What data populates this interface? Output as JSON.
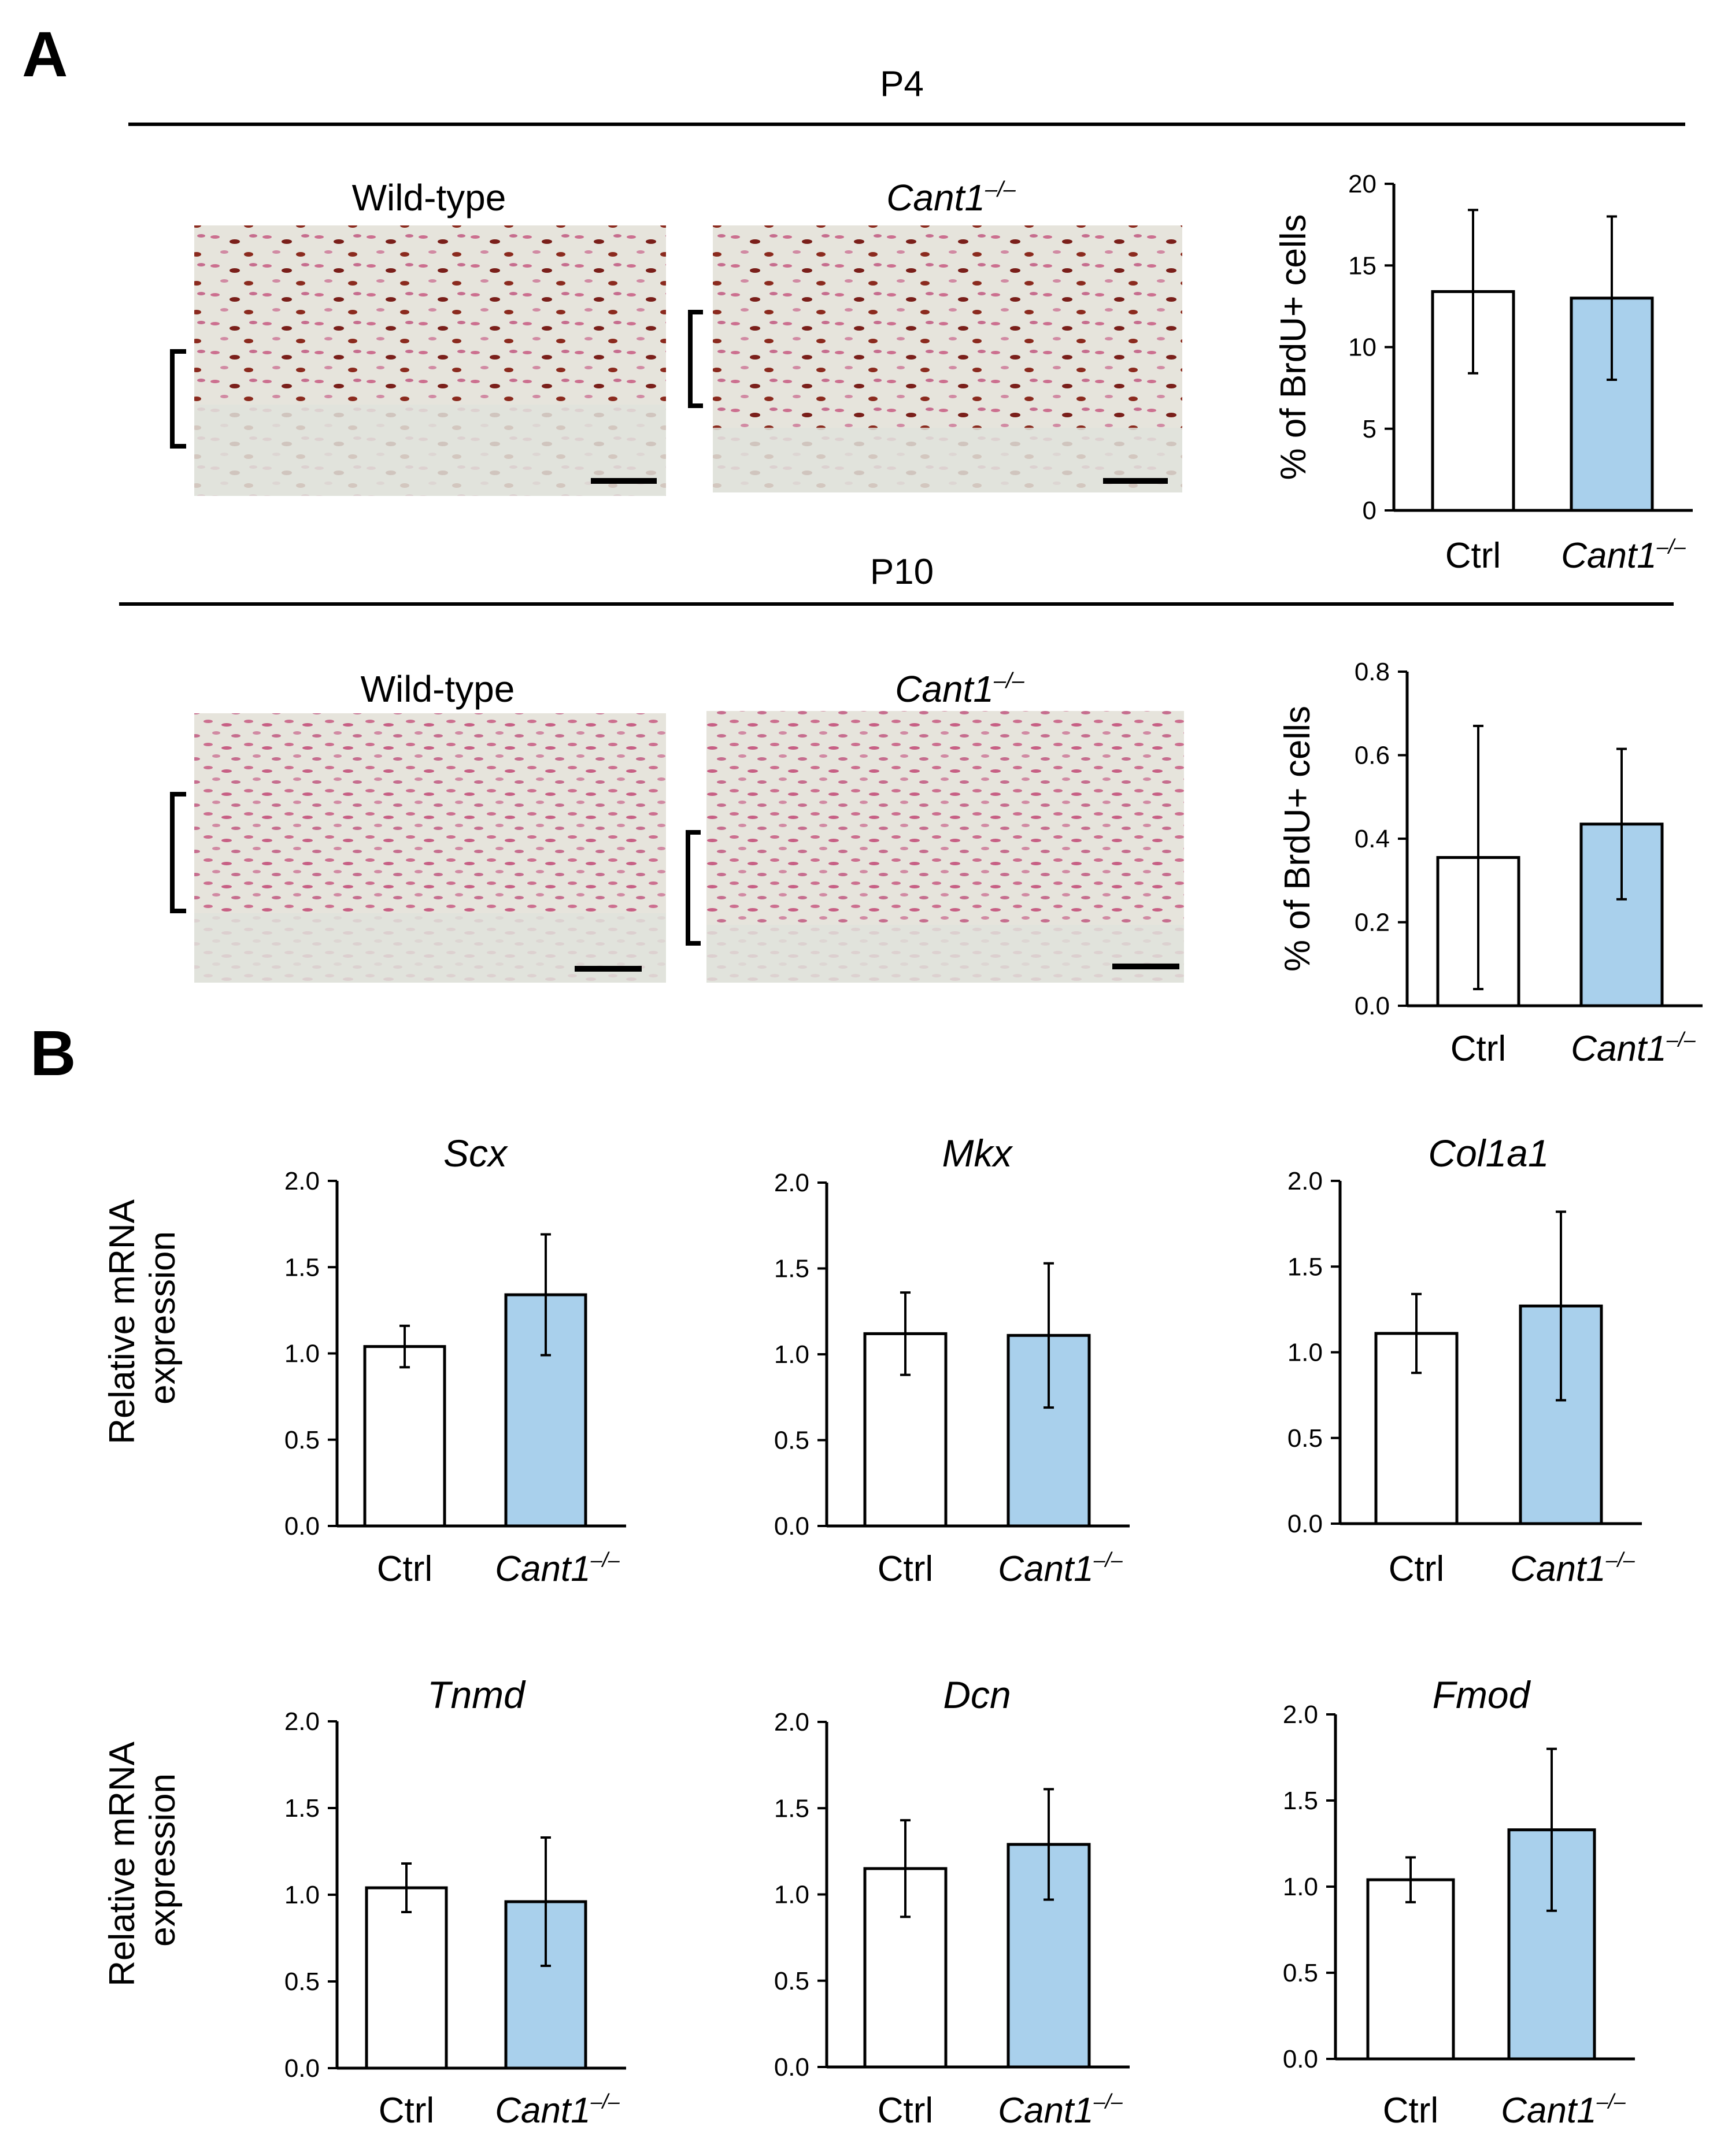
{
  "panels": {
    "a": "A",
    "b": "B"
  },
  "colors": {
    "ctrl_bar": "#ffffff",
    "ko_bar": "#a9d0ec",
    "stroke": "#000000"
  },
  "section_a": {
    "rows": [
      {
        "time_label": "P4",
        "genotype_left": "Wild-type",
        "genotype_right": "Cant1",
        "genotype_right_sup": "–/–"
      },
      {
        "time_label": "P10",
        "genotype_left": "Wild-type",
        "genotype_right": "Cant1",
        "genotype_right_sup": "–/–"
      }
    ]
  },
  "category_labels": {
    "ctrl": "Ctrl",
    "ko": "Cant1",
    "ko_sup": "–/–"
  },
  "section_b_ylabel": [
    "Relative mRNA",
    "expression"
  ],
  "chart_data": [
    {
      "type": "bar",
      "title": "",
      "ylabel": "% of BrdU+ cells",
      "ylim": [
        0,
        20
      ],
      "yticks": [
        "0",
        "5",
        "10",
        "15",
        "20"
      ],
      "categories": [
        "Ctrl",
        "Cant1–/–"
      ],
      "values": [
        13.4,
        13.0
      ],
      "errors": [
        5.0,
        5.0
      ]
    },
    {
      "type": "bar",
      "title": "",
      "ylabel": "% of BrdU+ cells",
      "ylim": [
        0,
        0.8
      ],
      "yticks": [
        "0.0",
        "0.2",
        "0.4",
        "0.6",
        "0.8"
      ],
      "categories": [
        "Ctrl",
        "Cant1–/–"
      ],
      "values": [
        0.355,
        0.435
      ],
      "errors": [
        0.315,
        0.18
      ]
    },
    {
      "type": "bar",
      "title": "Scx",
      "ylabel": "",
      "ylim": [
        0,
        2.0
      ],
      "yticks": [
        "0.0",
        "0.5",
        "1.0",
        "1.5",
        "2.0"
      ],
      "categories": [
        "Ctrl",
        "Cant1–/–"
      ],
      "values": [
        1.04,
        1.34
      ],
      "errors": [
        0.12,
        0.35
      ]
    },
    {
      "type": "bar",
      "title": "Mkx",
      "ylabel": "",
      "ylim": [
        0,
        2.0
      ],
      "yticks": [
        "0.0",
        "0.5",
        "1.0",
        "1.5",
        "2.0"
      ],
      "categories": [
        "Ctrl",
        "Cant1–/–"
      ],
      "values": [
        1.12,
        1.11
      ],
      "errors": [
        0.24,
        0.42
      ]
    },
    {
      "type": "bar",
      "title": "Col1a1",
      "ylabel": "",
      "ylim": [
        0,
        2.0
      ],
      "yticks": [
        "0.0",
        "0.5",
        "1.0",
        "1.5",
        "2.0"
      ],
      "categories": [
        "Ctrl",
        "Cant1–/–"
      ],
      "values": [
        1.11,
        1.27
      ],
      "errors": [
        0.23,
        0.55
      ]
    },
    {
      "type": "bar",
      "title": "Tnmd",
      "ylabel": "",
      "ylim": [
        0,
        2.0
      ],
      "yticks": [
        "0.0",
        "0.5",
        "1.0",
        "1.5",
        "2.0"
      ],
      "categories": [
        "Ctrl",
        "Cant1–/–"
      ],
      "values": [
        1.04,
        0.96
      ],
      "errors": [
        0.14,
        0.37
      ]
    },
    {
      "type": "bar",
      "title": "Dcn",
      "ylabel": "",
      "ylim": [
        0,
        2.0
      ],
      "yticks": [
        "0.0",
        "0.5",
        "1.0",
        "1.5",
        "2.0"
      ],
      "categories": [
        "Ctrl",
        "Cant1–/–"
      ],
      "values": [
        1.15,
        1.29
      ],
      "errors": [
        0.28,
        0.32
      ]
    },
    {
      "type": "bar",
      "title": "Fmod",
      "ylabel": "",
      "ylim": [
        0,
        2.0
      ],
      "yticks": [
        "0.0",
        "0.5",
        "1.0",
        "1.5",
        "2.0"
      ],
      "categories": [
        "Ctrl",
        "Cant1–/–"
      ],
      "values": [
        1.04,
        1.33
      ],
      "errors": [
        0.13,
        0.47
      ]
    }
  ]
}
